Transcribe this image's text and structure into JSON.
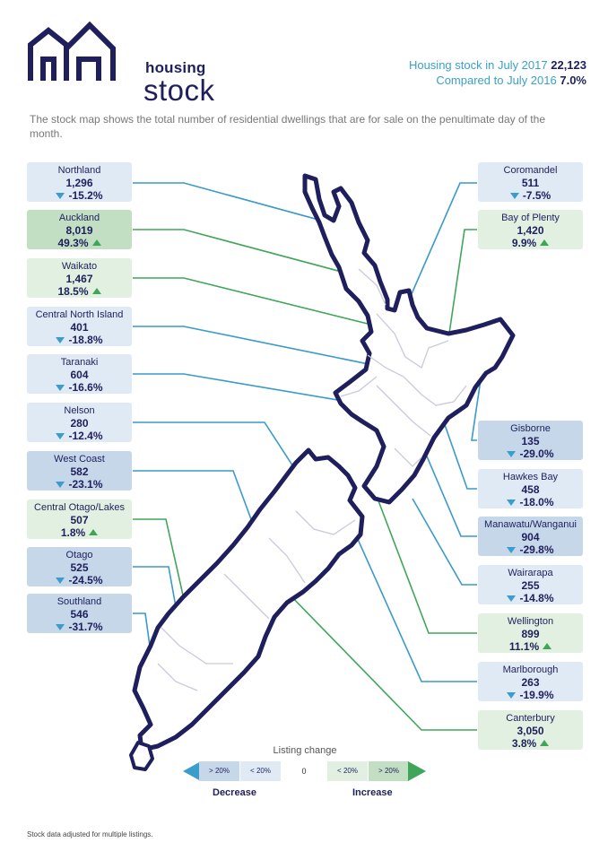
{
  "brand": {
    "line1": "housing",
    "line2": "stock",
    "colors": {
      "navy": "#1e1f5c",
      "blue": "#3aa0c8",
      "green": "#3fa659"
    }
  },
  "summary": {
    "stock_label": "Housing stock in July 2017",
    "stock_value": "22,123",
    "change_label": "Compared to July 2016",
    "change_value": "7.0%"
  },
  "intro": "The stock map shows the total number of residential dwellings that are for sale on the penultimate day of the month.",
  "regions": [
    {
      "id": "northland",
      "name": "Northland",
      "count": "1,296",
      "change": "-15.2%",
      "direction": "down",
      "tier": "low"
    },
    {
      "id": "auckland",
      "name": "Auckland",
      "count": "8,019",
      "change": "49.3%",
      "direction": "up",
      "tier": "high"
    },
    {
      "id": "waikato",
      "name": "Waikato",
      "count": "1,467",
      "change": "18.5%",
      "direction": "up",
      "tier": "low"
    },
    {
      "id": "central-north-island",
      "name": "Central North Island",
      "count": "401",
      "change": "-18.8%",
      "direction": "down",
      "tier": "low"
    },
    {
      "id": "taranaki",
      "name": "Taranaki",
      "count": "604",
      "change": "-16.6%",
      "direction": "down",
      "tier": "low"
    },
    {
      "id": "nelson",
      "name": "Nelson",
      "count": "280",
      "change": "-12.4%",
      "direction": "down",
      "tier": "low"
    },
    {
      "id": "west-coast",
      "name": "West Coast",
      "count": "582",
      "change": "-23.1%",
      "direction": "down",
      "tier": "high"
    },
    {
      "id": "central-otago-lakes",
      "name": "Central Otago/Lakes",
      "count": "507",
      "change": "1.8%",
      "direction": "up",
      "tier": "low"
    },
    {
      "id": "otago",
      "name": "Otago",
      "count": "525",
      "change": "-24.5%",
      "direction": "down",
      "tier": "high"
    },
    {
      "id": "southland",
      "name": "Southland",
      "count": "546",
      "change": "-31.7%",
      "direction": "down",
      "tier": "high"
    },
    {
      "id": "coromandel",
      "name": "Coromandel",
      "count": "511",
      "change": "-7.5%",
      "direction": "down",
      "tier": "low"
    },
    {
      "id": "bay-of-plenty",
      "name": "Bay of Plenty",
      "count": "1,420",
      "change": "9.9%",
      "direction": "up",
      "tier": "low"
    },
    {
      "id": "gisborne",
      "name": "Gisborne",
      "count": "135",
      "change": "-29.0%",
      "direction": "down",
      "tier": "high"
    },
    {
      "id": "hawkes-bay",
      "name": "Hawkes Bay",
      "count": "458",
      "change": "-18.0%",
      "direction": "down",
      "tier": "low"
    },
    {
      "id": "manawatu-wanganui",
      "name": "Manawatu/Wanganui",
      "count": "904",
      "change": "-29.8%",
      "direction": "down",
      "tier": "high"
    },
    {
      "id": "wairarapa",
      "name": "Wairarapa",
      "count": "255",
      "change": "-14.8%",
      "direction": "down",
      "tier": "low"
    },
    {
      "id": "wellington",
      "name": "Wellington",
      "count": "899",
      "change": "11.1%",
      "direction": "up",
      "tier": "low"
    },
    {
      "id": "marlborough",
      "name": "Marlborough",
      "count": "263",
      "change": "-19.9%",
      "direction": "down",
      "tier": "low"
    },
    {
      "id": "canterbury",
      "name": "Canterbury",
      "count": "3,050",
      "change": "3.8%",
      "direction": "up",
      "tier": "low"
    }
  ],
  "legend": {
    "title": "Listing change",
    "dec_high": "> 20%",
    "dec_low": "< 20%",
    "zero": "0",
    "inc_low": "< 20%",
    "inc_high": "> 20%",
    "decrease": "Decrease",
    "increase": "Increase",
    "colors": {
      "down_high": "#c6d7ea",
      "down_low": "#e0eaf5",
      "up_low": "#e2f0e2",
      "up_high": "#c3dfc3",
      "down_arrow": "#3a9dcc",
      "up_arrow": "#3fa659"
    }
  },
  "footnote": "Stock data adjusted for multiple listings."
}
